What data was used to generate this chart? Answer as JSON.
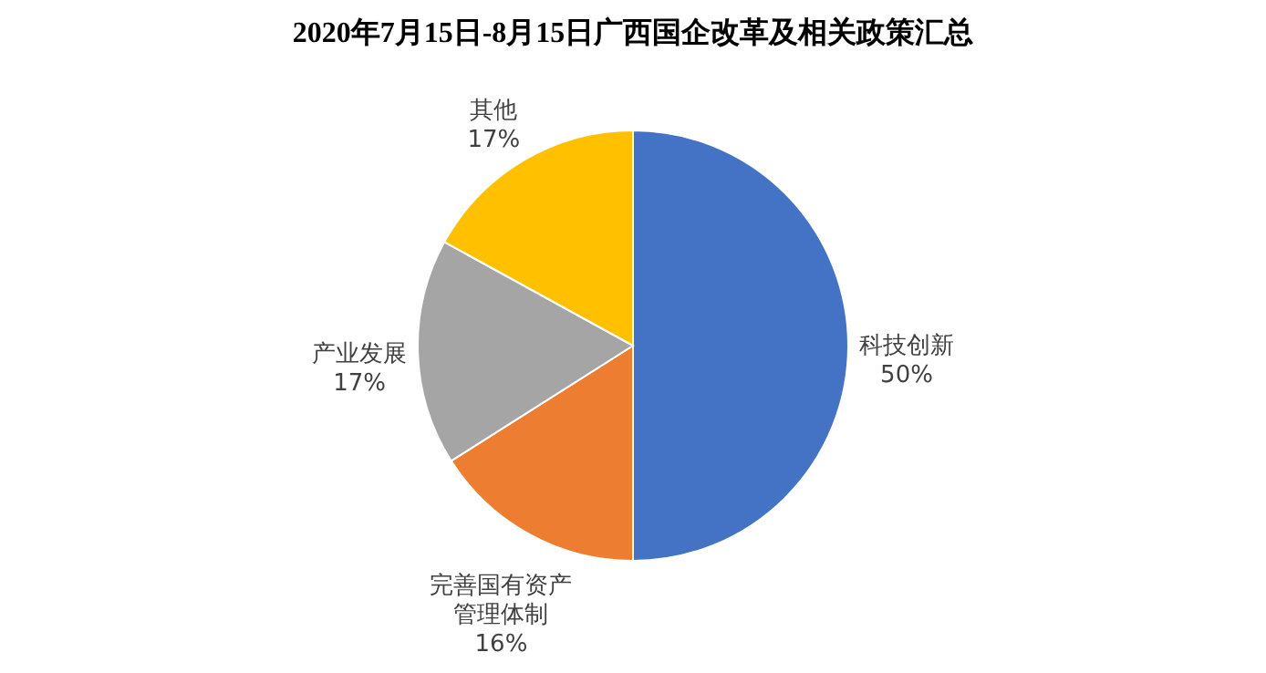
{
  "chart_data": {
    "type": "pie",
    "title": "2020年7月15日-8月15日广西国企改革及相关政策汇总",
    "categories": [
      "科技创新",
      "完善国有资产管理体制",
      "产业发展",
      "其他"
    ],
    "values": [
      50,
      16,
      17,
      17
    ],
    "value_labels": [
      "50%",
      "16%",
      "17%",
      "17%"
    ],
    "colors": [
      "#4472c4",
      "#ed7d31",
      "#a5a5a5",
      "#ffc000"
    ],
    "legend": false
  }
}
